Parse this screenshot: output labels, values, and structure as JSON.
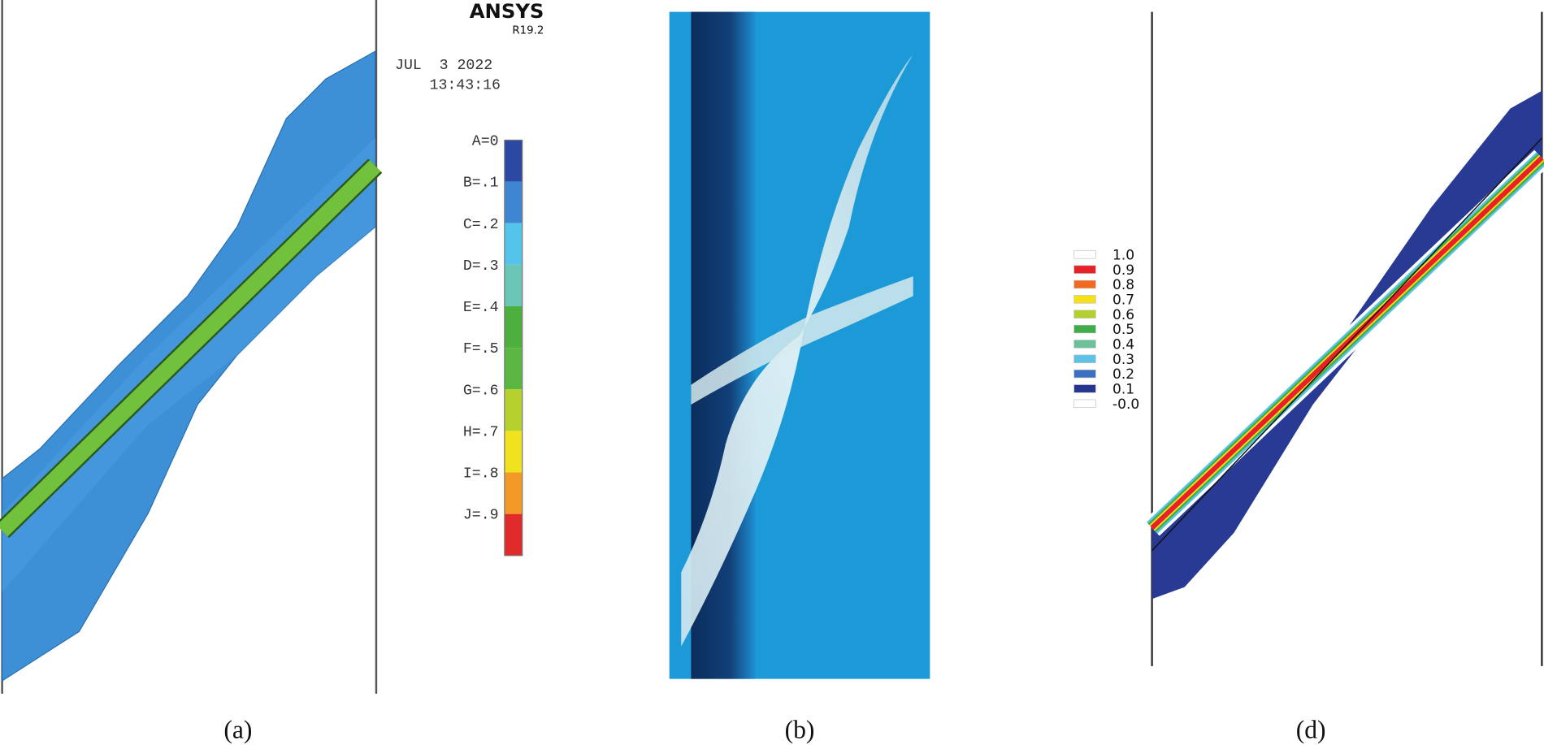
{
  "panel_a": {
    "logo": "ANSYS",
    "version": "R19.2",
    "date": "JUL  3 2022",
    "time": "13:43:16",
    "legend": [
      {
        "label": "A=0",
        "color": "#2b48a3"
      },
      {
        "label": "B=.1",
        "color": "#3f86d2"
      },
      {
        "label": "C=.2",
        "color": "#55c4ea"
      },
      {
        "label": "D=.3",
        "color": "#6cc6b5"
      },
      {
        "label": "E=.4",
        "color": "#4daf3d"
      },
      {
        "label": "F=.5",
        "color": "#5cb642"
      },
      {
        "label": "G=.6",
        "color": "#b6d02c"
      },
      {
        "label": "H=.7",
        "color": "#f0e21e"
      },
      {
        "label": "I=.8",
        "color": "#f39a26"
      },
      {
        "label": "J=.9",
        "color": "#e12a2a"
      }
    ],
    "caption": "(a)"
  },
  "panel_b": {
    "caption": "(b)"
  },
  "panel_d": {
    "legend": [
      {
        "label": "1.0",
        "color": "#ffffff"
      },
      {
        "label": "0.9",
        "color": "#e8202a"
      },
      {
        "label": "0.8",
        "color": "#f26a22"
      },
      {
        "label": "0.7",
        "color": "#f5e01a"
      },
      {
        "label": "0.6",
        "color": "#b2d02e"
      },
      {
        "label": "0.5",
        "color": "#3fae49"
      },
      {
        "label": "0.4",
        "color": "#6cc09a"
      },
      {
        "label": "0.3",
        "color": "#5cc3e6"
      },
      {
        "label": "0.2",
        "color": "#3b6fc2"
      },
      {
        "label": "0.1",
        "color": "#26368f"
      },
      {
        "label": "-0.0",
        "color": "#ffffff"
      }
    ],
    "caption": "(d)"
  }
}
